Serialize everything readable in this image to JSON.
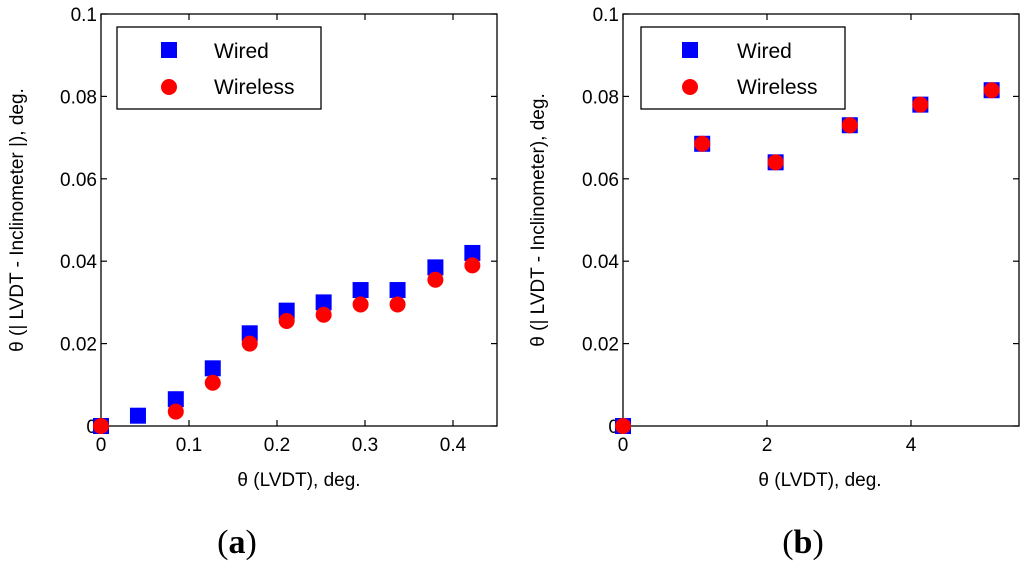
{
  "chart_data": [
    {
      "type": "scatter",
      "panel_label": "a",
      "xlabel": "θ (LVDT), deg.",
      "ylabel": "θ (| LVDT - Inclinometer |), deg.",
      "xlim": [
        0,
        0.45
      ],
      "ylim": [
        0,
        0.1
      ],
      "xticks": [
        0,
        0.1,
        0.2,
        0.3,
        0.4
      ],
      "yticks": [
        0,
        0.02,
        0.04,
        0.06,
        0.08,
        0.1
      ],
      "xtick_labels": [
        "0",
        "0.1",
        "0.2",
        "0.3",
        "0.4"
      ],
      "ytick_labels": [
        "0",
        "0.02",
        "0.04",
        "0.06",
        "0.08",
        "0.1"
      ],
      "legend": [
        "Wired",
        "Wireless"
      ],
      "legend_position": "top-left",
      "series": [
        {
          "name": "Wired",
          "marker": "square",
          "color": "#0000ff",
          "x": [
            0,
            0.042,
            0.085,
            0.127,
            0.169,
            0.211,
            0.253,
            0.295,
            0.337,
            0.38,
            0.422
          ],
          "y": [
            0,
            0.0025,
            0.0065,
            0.014,
            0.0225,
            0.028,
            0.03,
            0.033,
            0.033,
            0.0385,
            0.042
          ]
        },
        {
          "name": "Wireless",
          "marker": "circle",
          "color": "#ff0000",
          "x": [
            0,
            0.085,
            0.127,
            0.169,
            0.211,
            0.253,
            0.295,
            0.337,
            0.38,
            0.422
          ],
          "y": [
            0,
            0.0035,
            0.0105,
            0.02,
            0.0255,
            0.027,
            0.0295,
            0.0295,
            0.0355,
            0.039
          ]
        }
      ]
    },
    {
      "type": "scatter",
      "panel_label": "b",
      "xlabel": "θ (LVDT), deg.",
      "ylabel": "θ (| LVDT - Inclinometer), deg.",
      "xlim": [
        0,
        5.5
      ],
      "ylim": [
        0,
        0.1
      ],
      "xticks": [
        0,
        2,
        4
      ],
      "yticks": [
        0,
        0.02,
        0.04,
        0.06,
        0.08,
        0.1
      ],
      "xtick_labels": [
        "0",
        "2",
        "4"
      ],
      "ytick_labels": [
        "0",
        "0.02",
        "0.04",
        "0.06",
        "0.08",
        "0.1"
      ],
      "legend": [
        "Wired",
        "Wireless"
      ],
      "legend_position": "top-left",
      "series": [
        {
          "name": "Wired",
          "marker": "square",
          "color": "#0000ff",
          "x": [
            0,
            1.1,
            2.12,
            3.15,
            4.13,
            5.12
          ],
          "y": [
            0,
            0.0685,
            0.064,
            0.073,
            0.078,
            0.0815
          ]
        },
        {
          "name": "Wireless",
          "marker": "circle",
          "color": "#ff0000",
          "x": [
            0,
            1.1,
            2.12,
            3.15,
            4.13,
            5.12
          ],
          "y": [
            0,
            0.0685,
            0.064,
            0.073,
            0.078,
            0.0815
          ]
        }
      ]
    }
  ]
}
